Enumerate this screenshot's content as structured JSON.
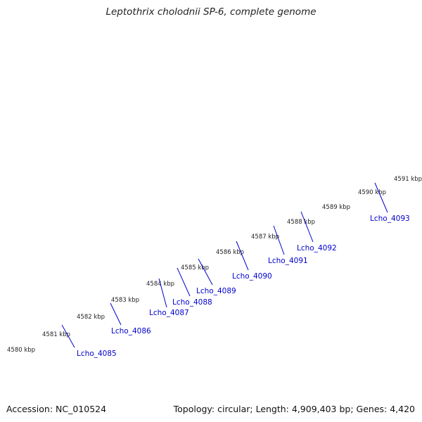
{
  "title": "Leptothrix cholodnii SP-6, complete genome",
  "footer": {
    "accession": "Accession: NC_010524",
    "summary": "Topology: circular; Length: 4,909,403 bp; Genes: 4,420"
  },
  "colors": {
    "forward_gene": "#1010e6",
    "reverse_gene": "#7a7a7a",
    "highlight_gene": "#99ee33",
    "other_feature": "#c2bb6e",
    "backbone": "#9a9a9a",
    "tick": "#1e7a1e",
    "locus_tag": "#0000cc"
  },
  "scale_labels": [
    "4580 kbp",
    "4581 kbp",
    "4582 kbp",
    "4583 kbp",
    "4584 kbp",
    "4585 kbp",
    "4586 kbp",
    "4587 kbp",
    "4588 kbp",
    "4589 kbp",
    "4590 kbp",
    "4591 kbp"
  ],
  "locus_tags": [
    "Lcho_4085",
    "Lcho_4086",
    "Lcho_4087",
    "Lcho_4088",
    "Lcho_4089",
    "Lcho_4090",
    "Lcho_4091",
    "Lcho_4092",
    "Lcho_4093"
  ]
}
